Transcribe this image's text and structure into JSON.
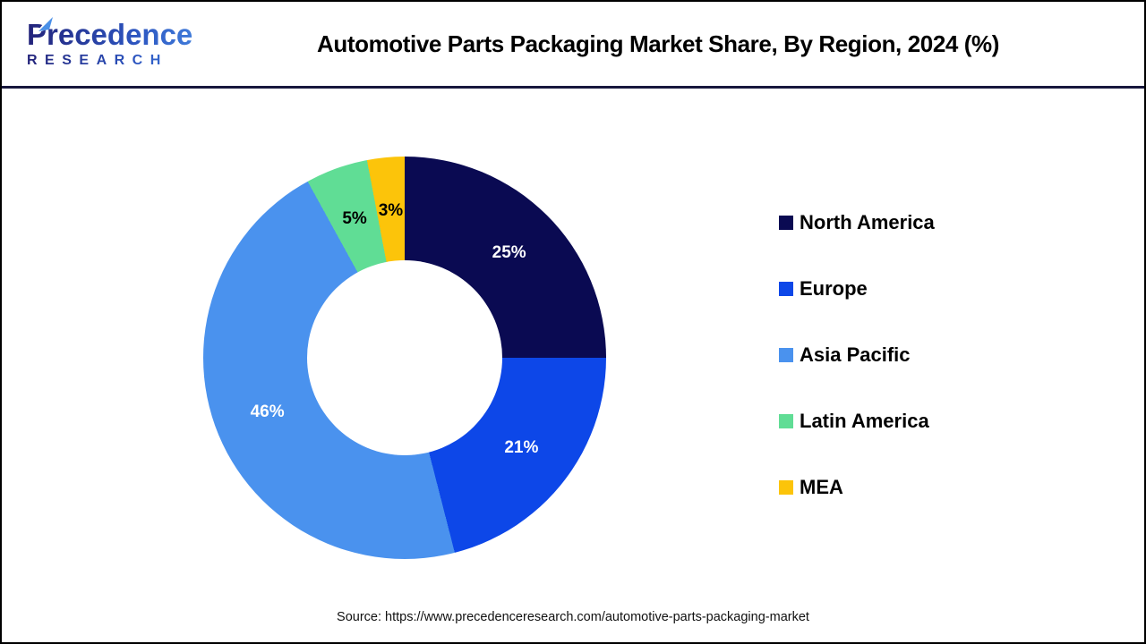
{
  "logo": {
    "name": "Precedence",
    "subtitle": "RESEARCH"
  },
  "title": "Automotive Parts Packaging Market Share, By Region, 2024 (%)",
  "source": "Source: https://www.precedenceresearch.com/automotive-parts-packaging-market",
  "chart_data": {
    "type": "pie",
    "subtype": "donut",
    "title": "Automotive Parts Packaging Market Share, By Region, 2024 (%)",
    "unit": "%",
    "start_angle_deg": 0,
    "direction": "clockwise",
    "categories": [
      "North America",
      "Europe",
      "Asia Pacific",
      "Latin America",
      "MEA"
    ],
    "values": [
      25,
      21,
      46,
      5,
      3
    ],
    "slice_labels": [
      "25%",
      "21%",
      "46%",
      "5%",
      "3%"
    ],
    "colors": [
      "#0a0a52",
      "#0d47e8",
      "#4a92ee",
      "#60dd95",
      "#fcc40a"
    ],
    "slice_label_colors": [
      "#ffffff",
      "#ffffff",
      "#ffffff",
      "#000000",
      "#000000"
    ],
    "legend_position": "right",
    "inner_radius_ratio": 0.48
  }
}
